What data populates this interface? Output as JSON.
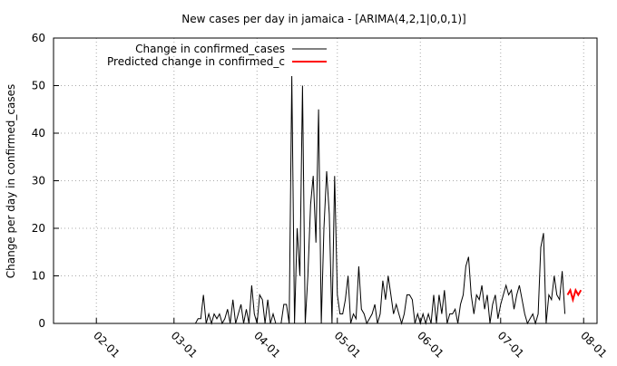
{
  "chart_data": {
    "type": "line",
    "title": "New cases per day in jamaica -  [ARIMA(4,2,1|0,0,1)]",
    "y_label": "Change per day in confirmed_cases",
    "xlim": [
      "01-16",
      "08-06"
    ],
    "xticks": [
      "02-01",
      "03-01",
      "04-01",
      "05-01",
      "06-01",
      "07-01",
      "08-01"
    ],
    "ylim": [
      0,
      60
    ],
    "yticks": [
      0,
      10,
      20,
      30,
      40,
      50,
      60
    ],
    "grid": true,
    "legend": "top-left",
    "series": [
      {
        "name": "Change in confirmed_cases",
        "color": "#000000",
        "x": [
          "03-08",
          "03-09",
          "03-10",
          "03-11",
          "03-12",
          "03-13",
          "03-14",
          "03-15",
          "03-16",
          "03-17",
          "03-18",
          "03-19",
          "03-20",
          "03-21",
          "03-22",
          "03-23",
          "03-24",
          "03-25",
          "03-26",
          "03-27",
          "03-28",
          "03-29",
          "03-30",
          "03-31",
          "04-01",
          "04-02",
          "04-03",
          "04-04",
          "04-05",
          "04-06",
          "04-07",
          "04-08",
          "04-09",
          "04-10",
          "04-11",
          "04-12",
          "04-13",
          "04-14",
          "04-15",
          "04-16",
          "04-17",
          "04-18",
          "04-19",
          "04-20",
          "04-21",
          "04-22",
          "04-23",
          "04-24",
          "04-25",
          "04-26",
          "04-27",
          "04-28",
          "04-29",
          "04-30",
          "05-01",
          "05-02",
          "05-03",
          "05-04",
          "05-05",
          "05-06",
          "05-07",
          "05-08",
          "05-09",
          "05-10",
          "05-11",
          "05-12",
          "05-13",
          "05-14",
          "05-15",
          "05-16",
          "05-17",
          "05-18",
          "05-19",
          "05-20",
          "05-21",
          "05-22",
          "05-23",
          "05-24",
          "05-25",
          "05-26",
          "05-27",
          "05-28",
          "05-29",
          "05-30",
          "05-31",
          "06-01",
          "06-02",
          "06-03",
          "06-04",
          "06-05",
          "06-06",
          "06-07",
          "06-08",
          "06-09",
          "06-10",
          "06-11",
          "06-12",
          "06-13",
          "06-14",
          "06-15",
          "06-16",
          "06-17",
          "06-18",
          "06-19",
          "06-20",
          "06-21",
          "06-22",
          "06-23",
          "06-24",
          "06-25",
          "06-26",
          "06-27",
          "06-28",
          "06-29",
          "06-30",
          "07-01",
          "07-02",
          "07-03",
          "07-04",
          "07-05",
          "07-06",
          "07-07",
          "07-08",
          "07-09",
          "07-10",
          "07-11",
          "07-12",
          "07-13",
          "07-14",
          "07-15",
          "07-16",
          "07-17",
          "07-18",
          "07-19",
          "07-20",
          "07-21",
          "07-22",
          "07-23",
          "07-24",
          "07-25"
        ],
        "values": [
          0,
          0,
          1,
          1,
          6,
          0,
          2,
          0,
          2,
          1,
          2,
          0,
          1,
          3,
          0,
          5,
          0,
          2,
          4,
          0,
          3,
          0,
          8,
          2,
          0,
          6,
          5,
          0,
          5,
          0,
          2,
          0,
          0,
          0,
          4,
          4,
          0,
          52,
          0,
          20,
          10,
          50,
          0,
          10,
          25,
          31,
          17,
          45,
          0,
          20,
          32,
          23,
          0,
          31,
          6,
          2,
          2,
          5,
          10,
          0,
          2,
          1,
          12,
          3,
          2,
          0,
          1,
          2,
          4,
          0,
          2,
          9,
          5,
          10,
          6,
          2,
          4,
          2,
          0,
          2,
          6,
          6,
          5,
          0,
          2,
          0,
          2,
          0,
          2,
          0,
          6,
          0,
          6,
          2,
          7,
          0,
          2,
          2,
          3,
          0,
          4,
          6,
          12,
          14,
          6,
          2,
          6,
          5,
          8,
          3,
          6,
          0,
          4,
          6,
          1,
          4,
          6,
          8,
          6,
          7,
          3,
          6,
          8,
          5,
          2,
          0,
          1,
          2,
          0,
          2,
          16,
          19,
          0,
          6,
          5,
          10,
          6,
          5,
          11,
          2
        ]
      },
      {
        "name": "Predicted change in confirmed_c",
        "color": "#ff0000",
        "x": [
          "07-26",
          "07-27",
          "07-28",
          "07-29",
          "07-30",
          "07-31"
        ],
        "values": [
          6,
          7,
          5,
          7,
          6,
          7
        ]
      }
    ]
  }
}
